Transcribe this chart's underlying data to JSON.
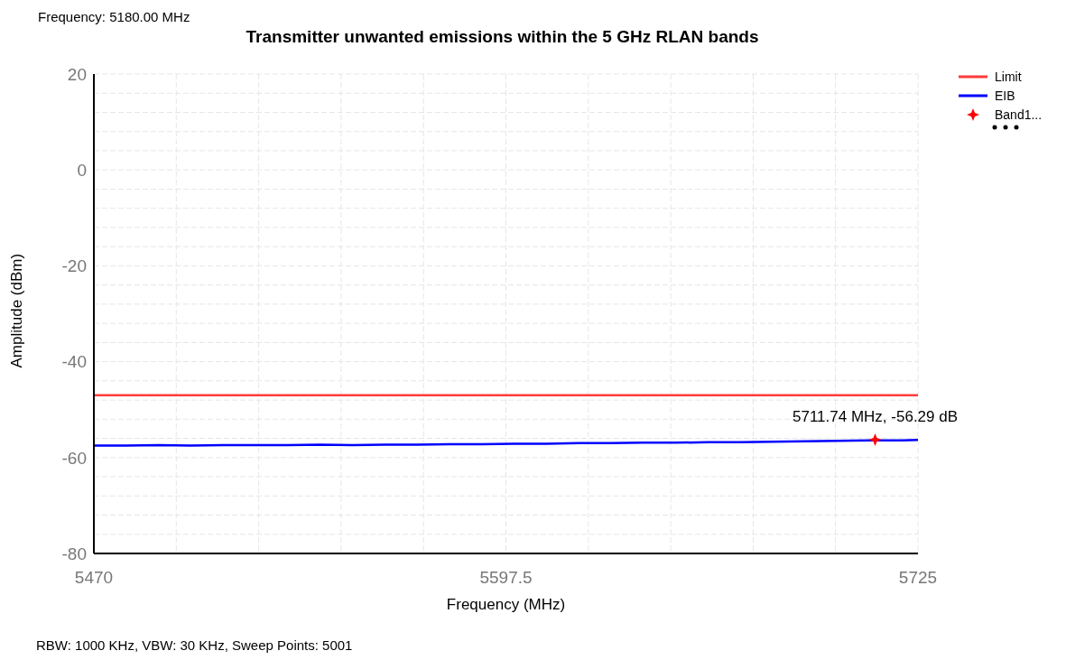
{
  "chart_data": {
    "type": "line",
    "title": "Transmitter unwanted emissions within the 5 GHz RLAN bands",
    "xlabel": "Frequency (MHz)",
    "ylabel": "Amplitude (dBm)",
    "annotations": [
      "Frequency: 5180.00 MHz",
      "RBW: 1000 KHz,  VBW: 30 KHz,  Sweep Points: 5001",
      {
        "text": "5711.74 MHz, -56.29 dB",
        "x": 5711.74,
        "y": -56.29
      }
    ],
    "series": [
      {
        "name": "Limit",
        "color": "#ff3b3b",
        "type": "line",
        "x": [
          5470,
          5725
        ],
        "values": [
          -47,
          -47
        ]
      },
      {
        "name": "EIB",
        "color": "#0000ff",
        "type": "line",
        "x": [
          5470,
          5480,
          5490,
          5500,
          5510,
          5520,
          5530,
          5540,
          5550,
          5560,
          5570,
          5580,
          5590,
          5600,
          5610,
          5620,
          5630,
          5640,
          5650,
          5660,
          5670,
          5680,
          5690,
          5700,
          5710,
          5720,
          5725
        ],
        "values": [
          -57.5,
          -57.5,
          -57.4,
          -57.5,
          -57.4,
          -57.4,
          -57.4,
          -57.3,
          -57.4,
          -57.3,
          -57.3,
          -57.2,
          -57.2,
          -57.1,
          -57.1,
          -57.0,
          -57.0,
          -56.9,
          -56.9,
          -56.8,
          -56.8,
          -56.7,
          -56.6,
          -56.5,
          -56.4,
          -56.4,
          -56.3
        ]
      },
      {
        "name": "Band1...",
        "color": "#ff0000",
        "type": "scatter",
        "marker": "star",
        "x": [
          5711.74
        ],
        "values": [
          -56.29
        ]
      }
    ],
    "xlim": [
      5470,
      5725
    ],
    "xticks": [
      5470,
      {
        "value": 5495.5,
        "label": null
      },
      {
        "value": 5521,
        "label": null
      },
      {
        "value": 5546.5,
        "label": null
      },
      {
        "value": 5572,
        "label": null
      },
      5597.5,
      {
        "value": 5623,
        "label": null
      },
      {
        "value": 5648.5,
        "label": null
      },
      {
        "value": 5674,
        "label": null
      },
      {
        "value": 5699.5,
        "label": null
      },
      5725
    ],
    "ylim": [
      -80,
      20
    ],
    "yticks": [
      -80,
      {
        "value": -76,
        "label": null
      },
      {
        "value": -72,
        "label": null
      },
      {
        "value": -68,
        "label": null
      },
      {
        "value": -64,
        "label": null
      },
      -60,
      {
        "value": -56,
        "label": null
      },
      {
        "value": -52,
        "label": null
      },
      {
        "value": -48,
        "label": null
      },
      {
        "value": -44,
        "label": null
      },
      -40,
      {
        "value": -36,
        "label": null
      },
      {
        "value": -32,
        "label": null
      },
      {
        "value": -28,
        "label": null
      },
      {
        "value": -24,
        "label": null
      },
      -20,
      {
        "value": -16,
        "label": null
      },
      {
        "value": -12,
        "label": null
      },
      {
        "value": -8,
        "label": null
      },
      {
        "value": -4,
        "label": null
      },
      0,
      {
        "value": 4,
        "label": null
      },
      {
        "value": 8,
        "label": null
      },
      {
        "value": 12,
        "label": null
      },
      {
        "value": 16,
        "label": null
      },
      20
    ],
    "grid": true,
    "legend": "top right",
    "marker": "none",
    "line_style": "solid"
  }
}
